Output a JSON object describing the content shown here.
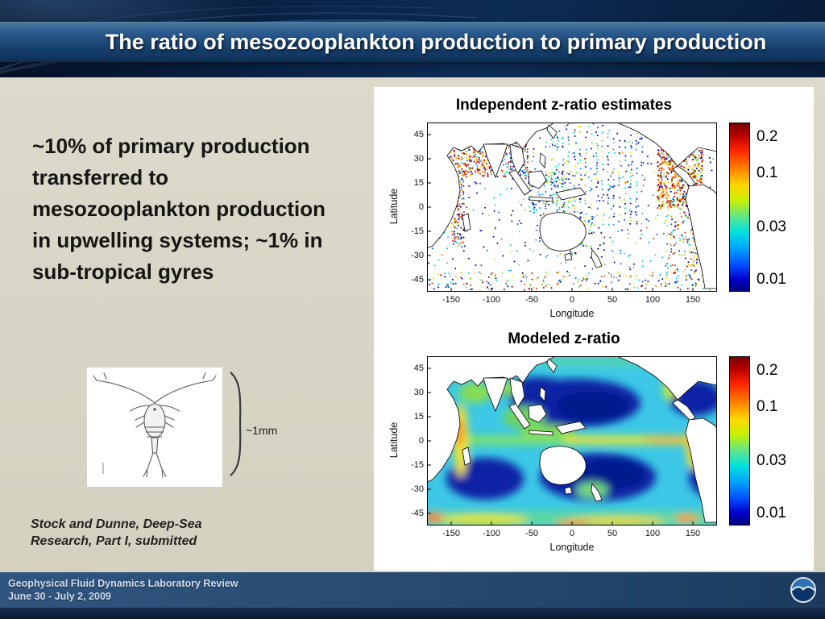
{
  "header": {
    "title": "The ratio of mesozooplankton production to primary production"
  },
  "body": {
    "text": "~10% of primary production transferred to mesozooplankton production in upwelling systems; ~1% in sub-tropical gyres",
    "scale_label": "~1mm",
    "citation": "Stock and Dunne, Deep-Sea Research, Part I, submitted"
  },
  "figures": {
    "top": {
      "title": "Independent z-ratio estimates",
      "type": "scatter-map",
      "xlabel": "Longitude",
      "ylabel": "Latitude",
      "xticks": [
        "-150",
        "-100",
        "-50",
        "0",
        "50",
        "100",
        "150"
      ],
      "yticks": [
        "45",
        "30",
        "15",
        "0",
        "-15",
        "-30",
        "-45"
      ],
      "cbar": [
        "0.2",
        "0.1",
        "0.03",
        "0.01"
      ]
    },
    "bottom": {
      "title": "Modeled z-ratio",
      "type": "heatmap",
      "xlabel": "Longitude",
      "ylabel": "Latitude",
      "xticks": [
        "-150",
        "-100",
        "-50",
        "0",
        "50",
        "100",
        "150"
      ],
      "yticks": [
        "45",
        "30",
        "15",
        "0",
        "-15",
        "-30",
        "-45"
      ],
      "cbar": [
        "0.2",
        "0.1",
        "0.03",
        "0.01"
      ]
    }
  },
  "footer": {
    "line1": "Geophysical Fluid Dynamics Laboratory Review",
    "line2": "June 30 - July 2, 2009",
    "logo": "noaa-logo"
  },
  "colors": {
    "header_navy": "#0a2348",
    "title_band_blue": "#1c4677",
    "body_bg": "#d8d5c6",
    "panel_bg": "#ffffff",
    "footer_blue": "#27496f",
    "colorbar_max": "#7a0000",
    "colorbar_min": "#000082"
  }
}
